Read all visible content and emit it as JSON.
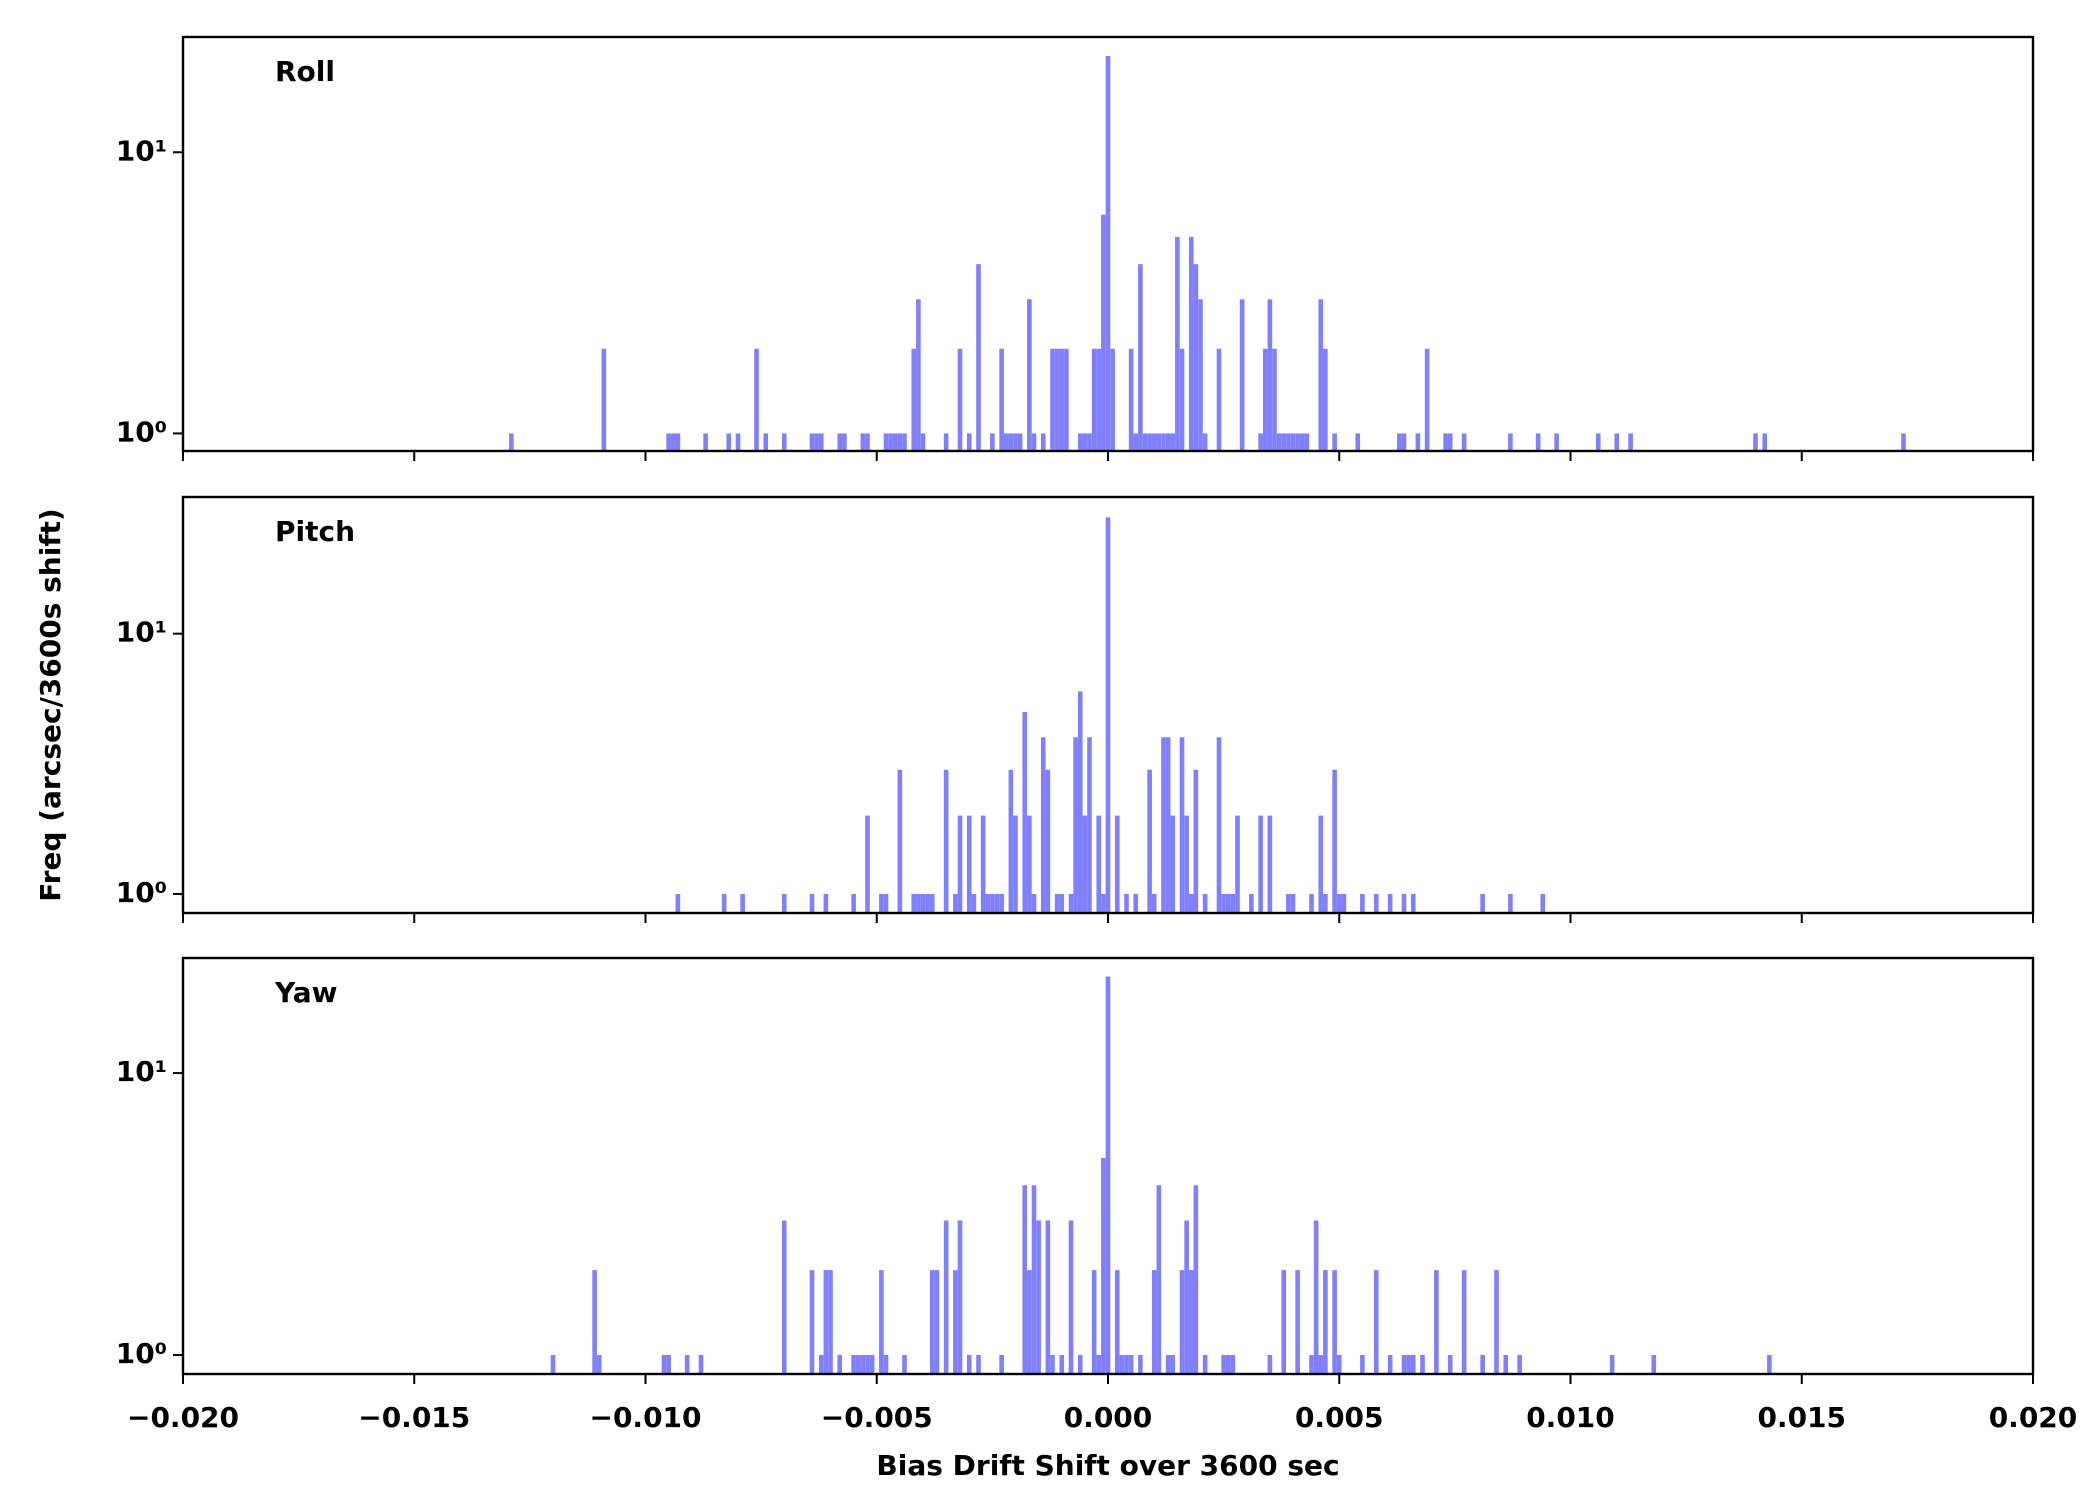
{
  "chart_data": [
    {
      "type": "bar",
      "title": "Roll",
      "yscale": "log",
      "color": "#8080ff",
      "xlim": [
        -0.02,
        0.02
      ],
      "xticks": [
        -0.02,
        -0.015,
        -0.01,
        -0.005,
        0,
        0.005,
        0.01,
        0.015,
        0.02
      ],
      "ylim": [
        0.866,
        25.7
      ],
      "yticks": [
        {
          "value": 1,
          "label": "10⁰"
        },
        {
          "value": 10,
          "label": "10¹"
        }
      ],
      "x": [
        -0.0129,
        -0.0109,
        -0.0095,
        -0.0094,
        -0.0093,
        -0.0087,
        -0.0082,
        -0.008,
        -0.0076,
        -0.0074,
        -0.007,
        -0.0064,
        -0.0063,
        -0.0062,
        -0.0058,
        -0.0057,
        -0.0053,
        -0.0052,
        -0.0048,
        -0.0047,
        -0.0046,
        -0.0045,
        -0.0044,
        -0.0042,
        -0.0041,
        -0.004,
        -0.0035,
        -0.0032,
        -0.003,
        -0.0028,
        -0.0025,
        -0.0023,
        -0.0022,
        -0.0021,
        -0.002,
        -0.0019,
        -0.0017,
        -0.0016,
        -0.0014,
        -0.0012,
        -0.0011,
        -0.001,
        -0.0009,
        -0.0006,
        -0.0005,
        -0.0004,
        -0.0003,
        -0.0002,
        -0.0001,
        0,
        0.0001,
        0.0005,
        0.0006,
        0.0007,
        0.0008,
        0.0009,
        0.001,
        0.0011,
        0.0012,
        0.0013,
        0.0014,
        0.0015,
        0.0016,
        0.0018,
        0.0019,
        0.002,
        0.0021,
        0.0024,
        0.0029,
        0.0033,
        0.0034,
        0.0035,
        0.0036,
        0.0037,
        0.0038,
        0.0039,
        0.004,
        0.0041,
        0.0042,
        0.0043,
        0.0046,
        0.0047,
        0.0049,
        0.0054,
        0.0063,
        0.0064,
        0.0067,
        0.0069,
        0.0073,
        0.0074,
        0.0077,
        0.0087,
        0.0093,
        0.0097,
        0.0106,
        0.011,
        0.0113,
        0.014,
        0.0142,
        0.0172
      ],
      "values": [
        1,
        2,
        1,
        1,
        1,
        1,
        1,
        1,
        2,
        1,
        1,
        1,
        1,
        1,
        1,
        1,
        1,
        1,
        1,
        1,
        1,
        1,
        1,
        2,
        3,
        1,
        1,
        2,
        1,
        4,
        1,
        2,
        1,
        1,
        1,
        1,
        3,
        1,
        1,
        2,
        2,
        2,
        2,
        1,
        1,
        1,
        2,
        2,
        6,
        22,
        2,
        2,
        1,
        4,
        1,
        1,
        1,
        1,
        1,
        1,
        1,
        5,
        2,
        5,
        4,
        3,
        1,
        2,
        3,
        1,
        2,
        3,
        2,
        1,
        1,
        1,
        1,
        1,
        1,
        1,
        3,
        2,
        1,
        1,
        1,
        1,
        1,
        2,
        1,
        1,
        1,
        1,
        1,
        1,
        1,
        1,
        1,
        1,
        1,
        1
      ]
    },
    {
      "type": "bar",
      "title": "Pitch",
      "yscale": "log",
      "color": "#8080ff",
      "ylabel": "Freq (arcsec/3600s shift)",
      "xlim": [
        -0.02,
        0.02
      ],
      "xticks": [
        -0.02,
        -0.015,
        -0.01,
        -0.005,
        0,
        0.005,
        0.01,
        0.015,
        0.02
      ],
      "ylim": [
        0.845,
        33.5
      ],
      "yticks": [
        {
          "value": 1,
          "label": "10⁰"
        },
        {
          "value": 10,
          "label": "10¹"
        }
      ],
      "x": [
        -0.0093,
        -0.0083,
        -0.0079,
        -0.007,
        -0.0064,
        -0.0061,
        -0.0055,
        -0.0052,
        -0.0049,
        -0.0048,
        -0.0045,
        -0.0042,
        -0.0041,
        -0.004,
        -0.0039,
        -0.0038,
        -0.0035,
        -0.0033,
        -0.0032,
        -0.003,
        -0.0029,
        -0.0027,
        -0.0026,
        -0.0025,
        -0.0024,
        -0.0023,
        -0.0021,
        -0.002,
        -0.0018,
        -0.0017,
        -0.0016,
        -0.0014,
        -0.0013,
        -0.0011,
        -0.001,
        -0.0008,
        -0.0007,
        -0.0006,
        -0.0005,
        -0.0004,
        -0.0002,
        -0.0001,
        0,
        0.0002,
        0.0004,
        0.0006,
        0.0009,
        0.001,
        0.0012,
        0.0013,
        0.0014,
        0.0016,
        0.0017,
        0.0018,
        0.0019,
        0.0021,
        0.0024,
        0.0025,
        0.0026,
        0.0027,
        0.0028,
        0.0031,
        0.0033,
        0.0035,
        0.0039,
        0.004,
        0.0044,
        0.0046,
        0.0047,
        0.0049,
        0.005,
        0.0051,
        0.0055,
        0.0058,
        0.0061,
        0.0064,
        0.0066,
        0.0081,
        0.0087,
        0.0094
      ],
      "values": [
        1,
        1,
        1,
        1,
        1,
        1,
        1,
        2,
        1,
        1,
        3,
        1,
        1,
        1,
        1,
        1,
        3,
        1,
        2,
        2,
        1,
        2,
        1,
        1,
        1,
        1,
        3,
        2,
        5,
        2,
        1,
        4,
        3,
        1,
        1,
        1,
        4,
        6,
        2,
        4,
        2,
        1,
        28,
        2,
        1,
        1,
        3,
        1,
        4,
        4,
        2,
        4,
        2,
        1,
        3,
        1,
        4,
        1,
        1,
        1,
        2,
        1,
        2,
        2,
        1,
        1,
        1,
        2,
        1,
        3,
        1,
        1,
        1,
        1,
        1,
        1,
        1,
        1,
        1,
        1
      ]
    },
    {
      "type": "bar",
      "title": "Yaw",
      "yscale": "log",
      "color": "#8080ff",
      "xlabel": "Bias Drift Shift over 3600 sec",
      "xlim": [
        -0.02,
        0.02
      ],
      "xticks": [
        {
          "value": -0.02,
          "label": "−0.020"
        },
        {
          "value": -0.015,
          "label": "−0.015"
        },
        {
          "value": -0.01,
          "label": "−0.010"
        },
        {
          "value": -0.005,
          "label": "−0.005"
        },
        {
          "value": 0,
          "label": "0.000"
        },
        {
          "value": 0.005,
          "label": "0.005"
        },
        {
          "value": 0.01,
          "label": "0.010"
        },
        {
          "value": 0.015,
          "label": "0.015"
        },
        {
          "value": 0.02,
          "label": "0.020"
        }
      ],
      "ylim": [
        0.856,
        25.6
      ],
      "yticks": [
        {
          "value": 1,
          "label": "10⁰"
        },
        {
          "value": 10,
          "label": "10¹"
        }
      ],
      "x": [
        -0.012,
        -0.0111,
        -0.011,
        -0.0096,
        -0.0095,
        -0.0091,
        -0.0088,
        -0.007,
        -0.0064,
        -0.0062,
        -0.0061,
        -0.006,
        -0.0058,
        -0.0055,
        -0.0054,
        -0.0053,
        -0.0052,
        -0.0051,
        -0.0049,
        -0.0048,
        -0.0044,
        -0.0038,
        -0.0037,
        -0.0035,
        -0.0033,
        -0.0032,
        -0.003,
        -0.0028,
        -0.0023,
        -0.0018,
        -0.0017,
        -0.0016,
        -0.0015,
        -0.0013,
        -0.0012,
        -0.001,
        -0.0008,
        -0.0006,
        -0.0003,
        -0.0002,
        -0.0001,
        0,
        0.0002,
        0.0003,
        0.0004,
        0.0005,
        0.0007,
        0.001,
        0.0011,
        0.0013,
        0.0014,
        0.0016,
        0.0017,
        0.0018,
        0.0019,
        0.0021,
        0.0025,
        0.0026,
        0.0027,
        0.0035,
        0.0038,
        0.0041,
        0.0044,
        0.0045,
        0.0046,
        0.0047,
        0.0049,
        0.005,
        0.0055,
        0.0058,
        0.0061,
        0.0064,
        0.0065,
        0.0066,
        0.0068,
        0.0071,
        0.0074,
        0.0077,
        0.0081,
        0.0084,
        0.0086,
        0.0089,
        0.0109,
        0.0118,
        0.0143
      ],
      "values": [
        1,
        2,
        1,
        1,
        1,
        1,
        1,
        3,
        2,
        1,
        2,
        2,
        1,
        1,
        1,
        1,
        1,
        1,
        2,
        1,
        1,
        2,
        2,
        3,
        2,
        3,
        1,
        1,
        1,
        4,
        2,
        4,
        3,
        3,
        1,
        1,
        3,
        1,
        2,
        1,
        5,
        22,
        2,
        1,
        1,
        1,
        1,
        2,
        4,
        1,
        1,
        2,
        3,
        2,
        4,
        1,
        1,
        1,
        1,
        1,
        2,
        2,
        1,
        3,
        1,
        2,
        2,
        1,
        1,
        2,
        1,
        1,
        1,
        1,
        1,
        2,
        1,
        2,
        1,
        2,
        1,
        1,
        1,
        1,
        1
      ]
    }
  ]
}
